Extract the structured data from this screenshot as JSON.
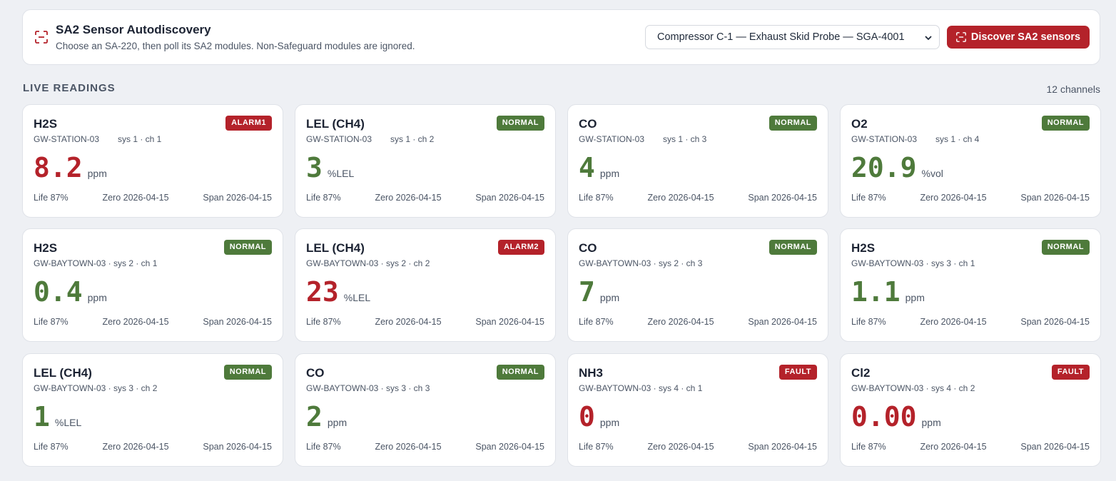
{
  "discovery": {
    "title": "SA2 Sensor Autodiscovery",
    "subtitle": "Choose an SA-220, then poll its SA2 modules. Non-Safeguard modules are ignored.",
    "selected_device": "Compressor C-1 — Exhaust Skid Probe — SGA-4001",
    "button_label": "Discover SA2 sensors",
    "icon": "scan-icon"
  },
  "readings": {
    "section_label": "LIVE READINGS",
    "channel_count": "12 channels"
  },
  "colors": {
    "accent": "#b4222a",
    "normal": "#4e7a3b"
  },
  "cards": [
    {
      "gas": "H2S",
      "badge": "ALARM1",
      "status": "red",
      "source": "GW-STATION-03",
      "loc": "sys 1 · ch 1",
      "value": "8.2",
      "unit": "ppm",
      "life": "Life 87%",
      "zero": "Zero 2026-04-15",
      "span": "Span 2026-04-15"
    },
    {
      "gas": "LEL (CH4)",
      "badge": "NORMAL",
      "status": "green",
      "source": "GW-STATION-03",
      "loc": "sys 1 · ch 2",
      "value": "3",
      "unit": "%LEL",
      "life": "Life 87%",
      "zero": "Zero 2026-04-15",
      "span": "Span 2026-04-15"
    },
    {
      "gas": "CO",
      "badge": "NORMAL",
      "status": "green",
      "source": "GW-STATION-03",
      "loc": "sys 1 · ch 3",
      "value": "4",
      "unit": "ppm",
      "life": "Life 87%",
      "zero": "Zero 2026-04-15",
      "span": "Span 2026-04-15"
    },
    {
      "gas": "O2",
      "badge": "NORMAL",
      "status": "green",
      "source": "GW-STATION-03",
      "loc": "sys 1 · ch 4",
      "value": "20.9",
      "unit": "%vol",
      "life": "Life 87%",
      "zero": "Zero 2026-04-15",
      "span": "Span 2026-04-15"
    },
    {
      "gas": "H2S",
      "badge": "NORMAL",
      "status": "green",
      "source": "GW-BAYTOWN-03 · sys 2 · ch 1",
      "loc": "",
      "value": "0.4",
      "unit": "ppm",
      "life": "Life 87%",
      "zero": "Zero 2026-04-15",
      "span": "Span 2026-04-15"
    },
    {
      "gas": "LEL (CH4)",
      "badge": "ALARM2",
      "status": "red",
      "source": "GW-BAYTOWN-03 · sys 2 · ch 2",
      "loc": "",
      "value": "23",
      "unit": "%LEL",
      "life": "Life 87%",
      "zero": "Zero 2026-04-15",
      "span": "Span 2026-04-15"
    },
    {
      "gas": "CO",
      "badge": "NORMAL",
      "status": "green",
      "source": "GW-BAYTOWN-03 · sys 2 · ch 3",
      "loc": "",
      "value": "7",
      "unit": "ppm",
      "life": "Life 87%",
      "zero": "Zero 2026-04-15",
      "span": "Span 2026-04-15"
    },
    {
      "gas": "H2S",
      "badge": "NORMAL",
      "status": "green",
      "source": "GW-BAYTOWN-03 · sys 3 · ch 1",
      "loc": "",
      "value": "1.1",
      "unit": "ppm",
      "life": "Life 87%",
      "zero": "Zero 2026-04-15",
      "span": "Span 2026-04-15"
    },
    {
      "gas": "LEL (CH4)",
      "badge": "NORMAL",
      "status": "green",
      "source": "GW-BAYTOWN-03 · sys 3 · ch 2",
      "loc": "",
      "value": "1",
      "unit": "%LEL",
      "life": "Life 87%",
      "zero": "Zero 2026-04-15",
      "span": "Span 2026-04-15"
    },
    {
      "gas": "CO",
      "badge": "NORMAL",
      "status": "green",
      "source": "GW-BAYTOWN-03 · sys 3 · ch 3",
      "loc": "",
      "value": "2",
      "unit": "ppm",
      "life": "Life 87%",
      "zero": "Zero 2026-04-15",
      "span": "Span 2026-04-15"
    },
    {
      "gas": "NH3",
      "badge": "FAULT",
      "status": "red",
      "source": "GW-BAYTOWN-03 · sys 4 · ch 1",
      "loc": "",
      "value": "0",
      "unit": "ppm",
      "life": "Life 87%",
      "zero": "Zero 2026-04-15",
      "span": "Span 2026-04-15"
    },
    {
      "gas": "Cl2",
      "badge": "FAULT",
      "status": "red",
      "source": "GW-BAYTOWN-03 · sys 4 · ch 2",
      "loc": "",
      "value": "0.00",
      "unit": "ppm",
      "life": "Life 87%",
      "zero": "Zero 2026-04-15",
      "span": "Span 2026-04-15"
    }
  ]
}
